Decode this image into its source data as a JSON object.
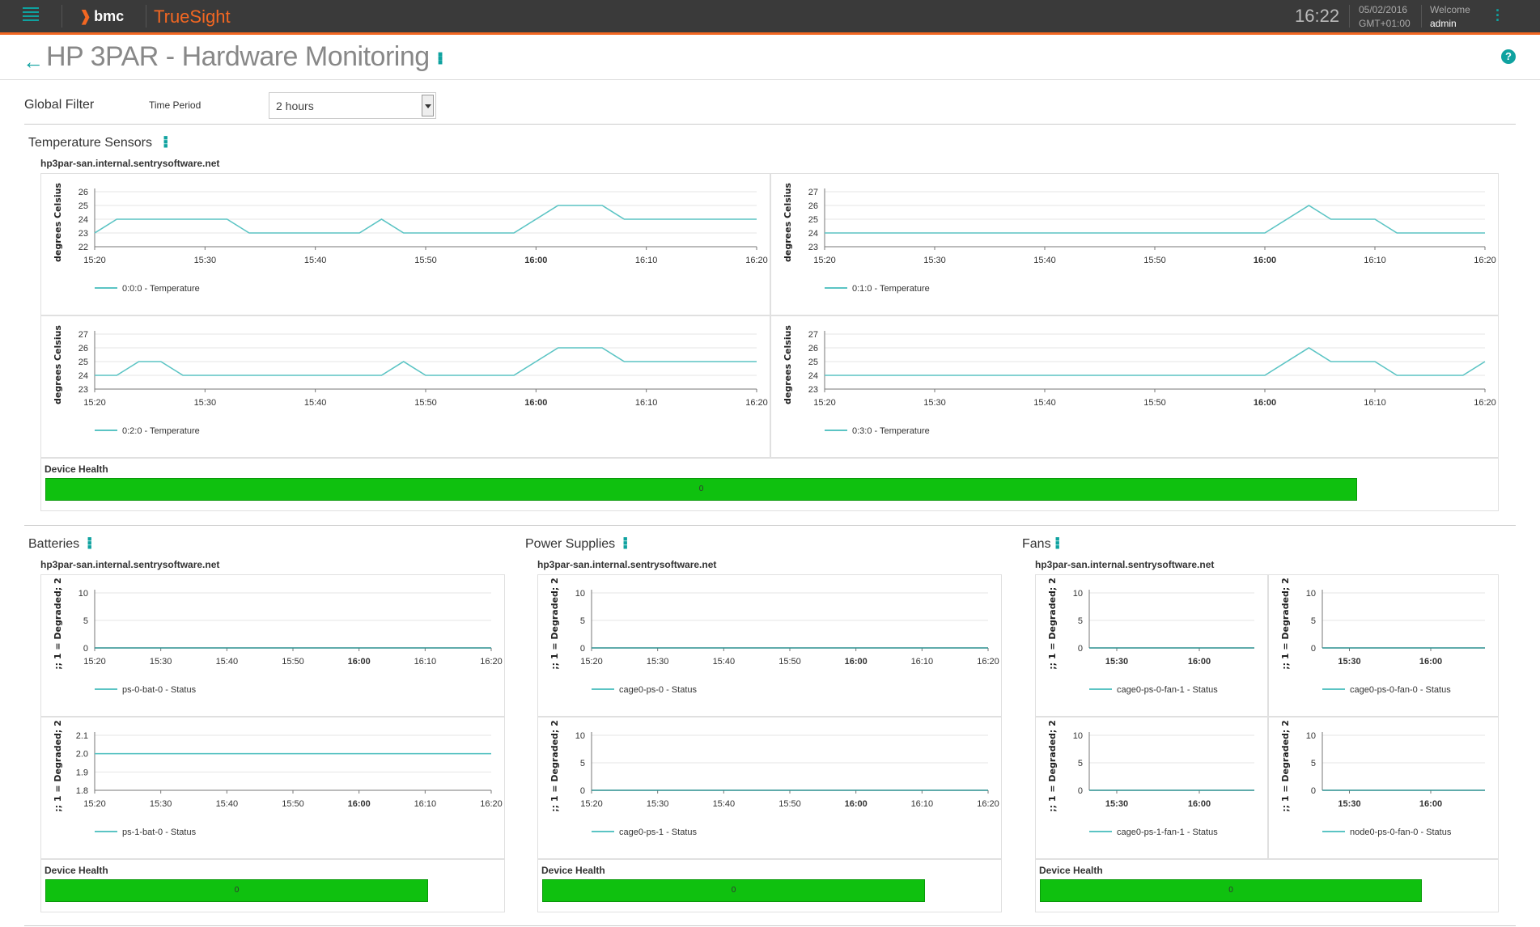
{
  "header": {
    "bmc": "bmc",
    "truesight": "TrueSight",
    "time": "16:22",
    "date": "05/02/2016",
    "tz": "GMT+01:00",
    "welcome": "Welcome",
    "user": "admin"
  },
  "page": {
    "title": "HP 3PAR - Hardware Monitoring"
  },
  "filter": {
    "global_label": "Global Filter",
    "time_period_label": "Time Period",
    "time_period_value": "2 hours"
  },
  "temperature": {
    "title": "Temperature Sensors",
    "host": "hp3par-san.internal.sentrysoftware.net",
    "health_label": "Device Health",
    "health_value": "0",
    "health_fill": 0.905
  },
  "batteries": {
    "title": "Batteries",
    "host": "hp3par-san.internal.sentrysoftware.net",
    "health_label": "Device Health",
    "health_value": "0",
    "health_fill": 0.84
  },
  "power": {
    "title": "Power Supplies",
    "host": "hp3par-san.internal.sentrysoftware.net",
    "health_label": "Device Health",
    "health_value": "0",
    "health_fill": 0.84
  },
  "fans": {
    "title": "Fans",
    "host": "hp3par-san.internal.sentrysoftware.net",
    "health_label": "Device Health",
    "health_value": "0",
    "health_fill": 0.84
  },
  "colors": {
    "line": "#5bc4c4",
    "accent": "#0fa2a0",
    "health": "#0fc10f"
  },
  "chart_data": [
    {
      "id": "t0",
      "type": "line",
      "ylabel": "degrees Celsius",
      "ylim": [
        22,
        26
      ],
      "yticks": [
        22,
        23,
        24,
        25,
        26
      ],
      "xlim": [
        15.333,
        16.333
      ],
      "xticks": [
        "15:20",
        "15:30",
        "15:40",
        "15:50",
        "16:00",
        "16:10",
        "16:20"
      ],
      "series": [
        {
          "name": "0:0:0 - Temperature",
          "x": [
            "15:20",
            "15:22",
            "15:32",
            "15:34",
            "15:44",
            "15:46",
            "15:48",
            "15:58",
            "16:02",
            "16:06",
            "16:08",
            "16:20"
          ],
          "values": [
            23,
            24,
            24,
            23,
            23,
            24,
            23,
            23,
            25,
            25,
            24,
            24
          ]
        }
      ]
    },
    {
      "id": "t1",
      "type": "line",
      "ylabel": "degrees Celsius",
      "ylim": [
        23,
        27
      ],
      "yticks": [
        23,
        24,
        25,
        26,
        27
      ],
      "xticks": [
        "15:20",
        "15:30",
        "15:40",
        "15:50",
        "16:00",
        "16:10",
        "16:20"
      ],
      "series": [
        {
          "name": "0:1:0 - Temperature",
          "x": [
            "15:20",
            "16:00",
            "16:04",
            "16:06",
            "16:10",
            "16:12",
            "16:20"
          ],
          "values": [
            24,
            24,
            26,
            25,
            25,
            24,
            24
          ]
        }
      ]
    },
    {
      "id": "t2",
      "type": "line",
      "ylabel": "degrees Celsius",
      "ylim": [
        23,
        27
      ],
      "yticks": [
        23,
        24,
        25,
        26,
        27
      ],
      "xticks": [
        "15:20",
        "15:30",
        "15:40",
        "15:50",
        "16:00",
        "16:10",
        "16:20"
      ],
      "series": [
        {
          "name": "0:2:0 - Temperature",
          "x": [
            "15:20",
            "15:22",
            "15:24",
            "15:26",
            "15:28",
            "15:46",
            "15:48",
            "15:50",
            "15:58",
            "16:02",
            "16:06",
            "16:08",
            "16:20"
          ],
          "values": [
            24,
            24,
            25,
            25,
            24,
            24,
            25,
            24,
            24,
            26,
            26,
            25,
            25
          ]
        }
      ]
    },
    {
      "id": "t3",
      "type": "line",
      "ylabel": "degrees Celsius",
      "ylim": [
        23,
        27
      ],
      "yticks": [
        23,
        24,
        25,
        26,
        27
      ],
      "xticks": [
        "15:20",
        "15:30",
        "15:40",
        "15:50",
        "16:00",
        "16:10",
        "16:20"
      ],
      "series": [
        {
          "name": "0:3:0 - Temperature",
          "x": [
            "15:20",
            "16:00",
            "16:04",
            "16:06",
            "16:10",
            "16:12",
            "16:16",
            "16:18",
            "16:20"
          ],
          "values": [
            24,
            24,
            26,
            25,
            25,
            24,
            24,
            24,
            25
          ]
        }
      ]
    },
    {
      "id": "b0",
      "type": "line",
      "ylabel": ";; 1 = Degraded; 2",
      "ylim": [
        0,
        10
      ],
      "yticks": [
        0,
        5,
        10
      ],
      "xticks": [
        "15:20",
        "15:30",
        "15:40",
        "15:50",
        "16:00",
        "16:10",
        "16:20"
      ],
      "series": [
        {
          "name": "ps-0-bat-0 - Status",
          "x": [
            "15:20",
            "16:20"
          ],
          "values": [
            0,
            0
          ]
        }
      ]
    },
    {
      "id": "b1",
      "type": "line",
      "ylabel": ";; 1 = Degraded; 2",
      "ylim": [
        1.8,
        2.1
      ],
      "yticks": [
        "1.8",
        "1.9",
        "2.0",
        "2.1"
      ],
      "xticks": [
        "15:20",
        "15:30",
        "15:40",
        "15:50",
        "16:00",
        "16:10",
        "16:20"
      ],
      "series": [
        {
          "name": "ps-1-bat-0 - Status",
          "x": [
            "15:20",
            "16:20"
          ],
          "values": [
            2,
            2
          ]
        }
      ]
    },
    {
      "id": "p0",
      "type": "line",
      "ylabel": ";; 1 = Degraded; 2",
      "ylim": [
        0,
        10
      ],
      "yticks": [
        0,
        5,
        10
      ],
      "xticks": [
        "15:20",
        "15:30",
        "15:40",
        "15:50",
        "16:00",
        "16:10",
        "16:20"
      ],
      "series": [
        {
          "name": "cage0-ps-0 - Status",
          "x": [
            "15:20",
            "16:20"
          ],
          "values": [
            0,
            0
          ]
        }
      ]
    },
    {
      "id": "p1",
      "type": "line",
      "ylabel": ";; 1 = Degraded; 2",
      "ylim": [
        0,
        10
      ],
      "yticks": [
        0,
        5,
        10
      ],
      "xticks": [
        "15:20",
        "15:30",
        "15:40",
        "15:50",
        "16:00",
        "16:10",
        "16:20"
      ],
      "series": [
        {
          "name": "cage0-ps-1 - Status",
          "x": [
            "15:20",
            "16:20"
          ],
          "values": [
            0,
            0
          ]
        }
      ]
    },
    {
      "id": "f0",
      "type": "line",
      "ylabel": ";; 1 = Degraded; 2",
      "ylim": [
        0,
        10
      ],
      "yticks": [
        0,
        5,
        10
      ],
      "xticks": [
        "15:30",
        "16:00"
      ],
      "series": [
        {
          "name": "cage0-ps-0-fan-1 - Status",
          "x": [
            "15:20",
            "16:20"
          ],
          "values": [
            0,
            0
          ]
        }
      ]
    },
    {
      "id": "f1",
      "type": "line",
      "ylabel": ";; 1 = Degraded; 2",
      "ylim": [
        0,
        10
      ],
      "yticks": [
        0,
        5,
        10
      ],
      "xticks": [
        "15:30",
        "16:00"
      ],
      "series": [
        {
          "name": "cage0-ps-0-fan-0 - Status",
          "x": [
            "15:20",
            "16:20"
          ],
          "values": [
            0,
            0
          ]
        }
      ]
    },
    {
      "id": "f2",
      "type": "line",
      "ylabel": ";; 1 = Degraded; 2",
      "ylim": [
        0,
        10
      ],
      "yticks": [
        0,
        5,
        10
      ],
      "xticks": [
        "15:30",
        "16:00"
      ],
      "series": [
        {
          "name": "cage0-ps-1-fan-1 - Status",
          "x": [
            "15:20",
            "16:20"
          ],
          "values": [
            0,
            0
          ]
        }
      ]
    },
    {
      "id": "f3",
      "type": "line",
      "ylabel": ";; 1 = Degraded; 2",
      "ylim": [
        0,
        10
      ],
      "yticks": [
        0,
        5,
        10
      ],
      "xticks": [
        "15:30",
        "16:00"
      ],
      "series": [
        {
          "name": "node0-ps-0-fan-0 - Status",
          "x": [
            "15:20",
            "16:20"
          ],
          "values": [
            0,
            0
          ]
        }
      ]
    }
  ]
}
